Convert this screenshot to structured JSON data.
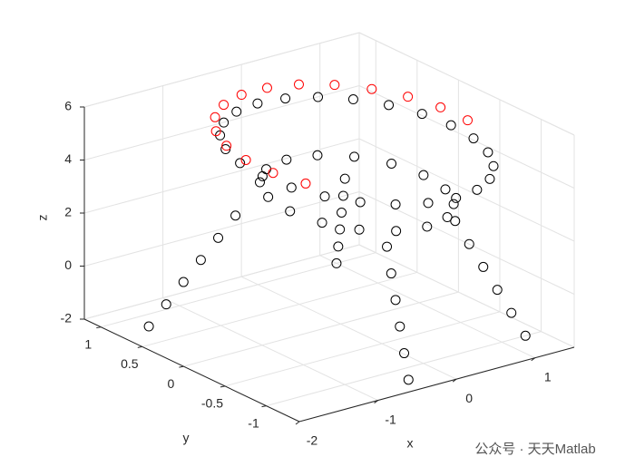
{
  "chart_data": {
    "type": "scatter3",
    "xlabel": "x",
    "ylabel": "y",
    "zlabel": "z",
    "xlim": [
      -2,
      1.5
    ],
    "ylim": [
      -1.4,
      1.2
    ],
    "zlim": [
      -2,
      6
    ],
    "xticks": [
      -2,
      -1,
      0,
      1
    ],
    "yticks": [
      -1,
      -0.5,
      0,
      0.5,
      1
    ],
    "zticks": [
      -2,
      0,
      2,
      4,
      6
    ],
    "grid": true,
    "series": [
      {
        "color": "#000000",
        "x": [
          1.3,
          1.259,
          1.139,
          0.948,
          0.7,
          0.411,
          0.1,
          -0.211,
          -0.5,
          -0.748,
          -0.939,
          -1.059,
          -1.1,
          -1.059,
          -0.939,
          -0.748,
          -0.5,
          -0.211,
          0.1,
          0.411,
          0.7,
          0.948,
          1.139,
          1.259,
          0.95,
          0.885,
          0.701,
          0.426,
          0.1,
          -0.226,
          -0.501,
          -0.685,
          -0.75,
          -0.685,
          -0.501,
          -0.226,
          0.1,
          0.426,
          0.701,
          0.885,
          -0.892,
          -1.033,
          -1.175,
          -1.317,
          -1.458,
          -1.6,
          0.625,
          0.7,
          0.775,
          0.85,
          0.925,
          1.0,
          0.8,
          0.9,
          1.0,
          1.1,
          1.2,
          1.3,
          -0.192,
          -0.233,
          -0.275,
          -0.317,
          -0.358,
          -0.4
        ],
        "y": [
          -0.1,
          0.211,
          0.5,
          0.748,
          0.939,
          1.059,
          1.1,
          1.059,
          0.939,
          0.748,
          0.5,
          0.211,
          -0.1,
          -0.411,
          -0.7,
          -0.948,
          -1.139,
          -1.259,
          -1.3,
          -1.259,
          -1.139,
          -0.948,
          -0.7,
          -0.411,
          -0.1,
          0.226,
          0.501,
          0.685,
          0.75,
          0.685,
          0.501,
          0.226,
          -0.1,
          -0.426,
          -0.701,
          -0.885,
          -0.95,
          -0.885,
          -0.701,
          -0.426,
          0.425,
          0.5,
          0.575,
          0.65,
          0.725,
          0.8,
          0.542,
          0.633,
          0.725,
          0.817,
          0.908,
          1.0,
          -0.625,
          -0.7,
          -0.775,
          -0.85,
          -0.925,
          -1.0,
          -0.742,
          -0.833,
          -0.925,
          -1.017,
          -1.108,
          -1.2
        ],
        "z": [
          4.6,
          4.6,
          4.6,
          4.6,
          4.6,
          4.6,
          4.6,
          4.6,
          4.6,
          4.6,
          4.6,
          4.6,
          4.6,
          4.6,
          4.6,
          4.6,
          4.6,
          4.6,
          4.6,
          4.6,
          4.6,
          4.6,
          4.6,
          4.6,
          3,
          3,
          3,
          3,
          3,
          3,
          3,
          3,
          3,
          3,
          3,
          3,
          3,
          3,
          3,
          3,
          2.17,
          1.33,
          0.5,
          -0.33,
          -1.17,
          -2,
          2.17,
          1.33,
          0.5,
          -0.33,
          -1.17,
          -2,
          2.17,
          1.33,
          0.5,
          -0.33,
          -1.17,
          -2,
          2.17,
          1.33,
          0.5,
          -0.33,
          -1.17,
          -2
        ]
      },
      {
        "color": "#ff0000",
        "x": [
          1.339,
          1.255,
          1.092,
          0.861,
          0.579,
          0.263,
          -0.063,
          -0.379,
          -0.661,
          -0.891,
          -1.055,
          -1.139,
          -1.139,
          -1.055,
          1.339
        ],
        "y": [
          0.064,
          0.379,
          0.661,
          0.891,
          1.055,
          1.139,
          1.139,
          1.055,
          0.891,
          0.661,
          0.379,
          0.064,
          -0.264,
          -0.579,
          -0.264
        ],
        "z": [
          5,
          5,
          5,
          5,
          5,
          5,
          5,
          5,
          5,
          5,
          5,
          5,
          5,
          5,
          5
        ]
      }
    ]
  },
  "watermark": "公众号 · 天天Matlab"
}
